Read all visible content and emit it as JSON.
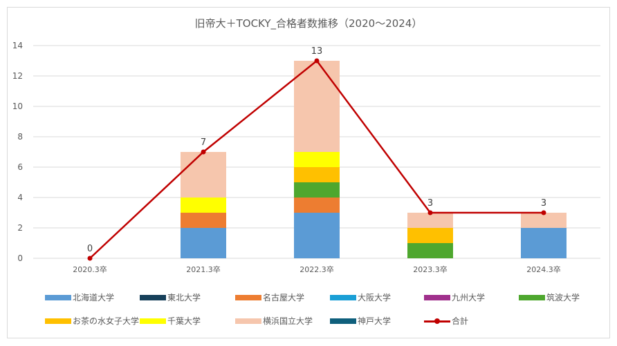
{
  "chart_data": {
    "type": "bar",
    "stacked": true,
    "title": "旧帝大＋TOCKY_合格者数推移（2020～2024）",
    "categories": [
      "2020.3卒",
      "2021.3卒",
      "2022.3卒",
      "2023.3卒",
      "2024.3卒"
    ],
    "ylim": [
      0,
      14
    ],
    "yticks": [
      "0",
      "2",
      "4",
      "6",
      "8",
      "10",
      "12",
      "14"
    ],
    "grid": true,
    "legend_position": "bottom",
    "series": [
      {
        "name": "北海道大学",
        "color": "#5b9bd5",
        "values": [
          0,
          2,
          3,
          0,
          2
        ]
      },
      {
        "name": "東北大学",
        "color": "#17405a",
        "values": [
          0,
          0,
          0,
          0,
          0
        ]
      },
      {
        "name": "名古屋大学",
        "color": "#ed7d31",
        "values": [
          0,
          1,
          1,
          0,
          0
        ]
      },
      {
        "name": "大阪大学",
        "color": "#1a9fd6",
        "values": [
          0,
          0,
          0,
          0,
          0
        ]
      },
      {
        "name": "九州大学",
        "color": "#a0308c",
        "values": [
          0,
          0,
          0,
          0,
          0
        ]
      },
      {
        "name": "筑波大学",
        "color": "#4ea72e",
        "values": [
          0,
          0,
          1,
          1,
          0
        ]
      },
      {
        "name": "お茶の水女子大学",
        "color": "#ffc000",
        "values": [
          0,
          0,
          1,
          1,
          0
        ]
      },
      {
        "name": "千葉大学",
        "color": "#ffff00",
        "values": [
          0,
          1,
          1,
          0,
          0
        ]
      },
      {
        "name": "横浜国立大学",
        "color": "#f6c6ad",
        "values": [
          0,
          3,
          6,
          1,
          1
        ]
      },
      {
        "name": "神戸大学",
        "color": "#0f5f7c",
        "values": [
          0,
          0,
          0,
          0,
          0
        ]
      }
    ],
    "line": {
      "name": "合計",
      "color": "#c00000",
      "values": [
        0,
        7,
        13,
        3,
        3
      ],
      "labels": [
        "0",
        "7",
        "13",
        "3",
        "3"
      ]
    }
  }
}
